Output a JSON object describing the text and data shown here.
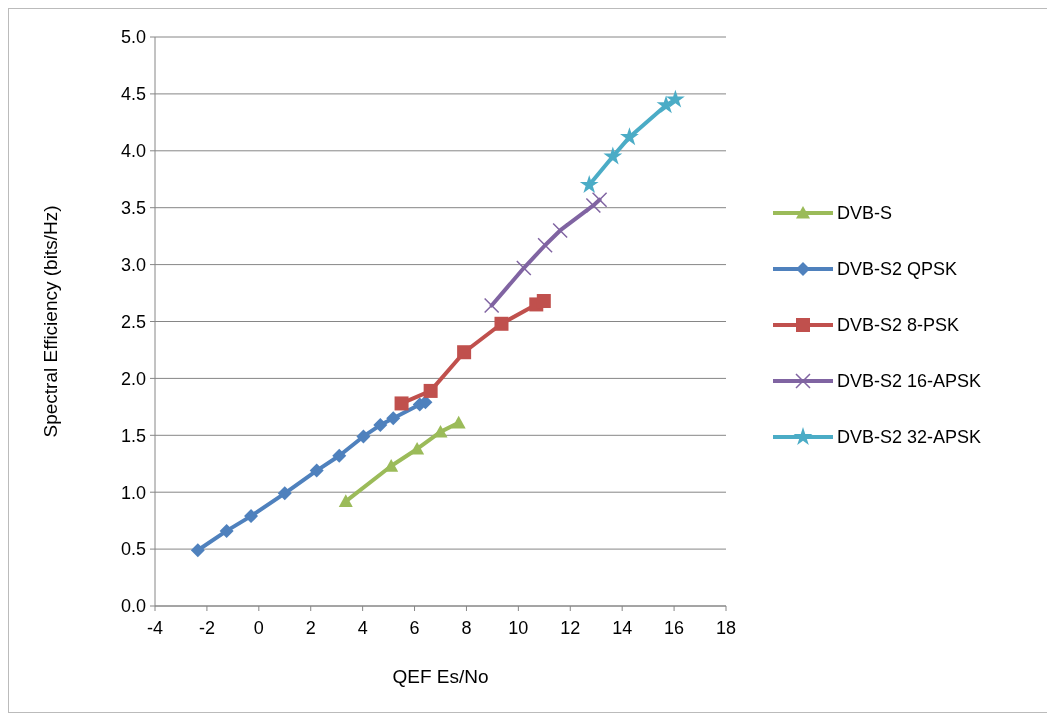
{
  "chart_data": {
    "type": "line",
    "xlabel": "QEF Es/No",
    "ylabel": "Spectral Efficiency (bits/Hz)",
    "xlim": [
      -4,
      18
    ],
    "xticks": [
      -4,
      -2,
      0,
      2,
      4,
      6,
      8,
      10,
      12,
      14,
      16,
      18
    ],
    "ylim": [
      0,
      5
    ],
    "yticks": [
      {
        "value": 0,
        "label": "0.0"
      },
      {
        "value": 0.5,
        "label": "0.5"
      },
      {
        "value": 1,
        "label": "1.0"
      },
      {
        "value": 1.5,
        "label": "1.5"
      },
      {
        "value": 2,
        "label": "2.0"
      },
      {
        "value": 2.5,
        "label": "2.5"
      },
      {
        "value": 3,
        "label": "3.0"
      },
      {
        "value": 3.5,
        "label": "3.5"
      },
      {
        "value": 4,
        "label": "4.0"
      },
      {
        "value": 4.5,
        "label": "4.5"
      },
      {
        "value": 5,
        "label": "5.0"
      }
    ],
    "grid": "y",
    "legend": "right",
    "line_style": "solid",
    "series": [
      {
        "name": "DVB-S",
        "color": "#9bbb59",
        "marker": "triangle",
        "x": [
          3.35,
          5.1,
          6.1,
          7.0,
          7.7
        ],
        "values": [
          0.92,
          1.23,
          1.38,
          1.53,
          1.61
        ]
      },
      {
        "name": "DVB-S2 QPSK",
        "color": "#4f81bd",
        "marker": "diamond",
        "x": [
          -2.35,
          -1.24,
          -0.3,
          1.0,
          2.23,
          3.1,
          4.03,
          4.68,
          5.18,
          6.2,
          6.42
        ],
        "values": [
          0.49,
          0.66,
          0.79,
          0.99,
          1.19,
          1.32,
          1.49,
          1.59,
          1.65,
          1.77,
          1.79
        ]
      },
      {
        "name": "DVB-S2 8-PSK",
        "color": "#c0504d",
        "marker": "square",
        "x": [
          5.5,
          6.62,
          7.91,
          9.35,
          10.69,
          10.98
        ],
        "values": [
          1.78,
          1.89,
          2.23,
          2.48,
          2.65,
          2.68
        ]
      },
      {
        "name": "DVB-S2 16-APSK",
        "color": "#8064a2",
        "marker": "cross",
        "x": [
          8.97,
          10.21,
          11.03,
          11.61,
          12.89,
          13.13
        ],
        "values": [
          2.64,
          2.97,
          3.17,
          3.3,
          3.52,
          3.57
        ]
      },
      {
        "name": "DVB-S2 32-APSK",
        "color": "#4bacc6",
        "marker": "star",
        "x": [
          12.73,
          13.64,
          14.28,
          15.69,
          16.05
        ],
        "values": [
          3.7,
          3.95,
          4.12,
          4.4,
          4.45
        ]
      }
    ]
  }
}
